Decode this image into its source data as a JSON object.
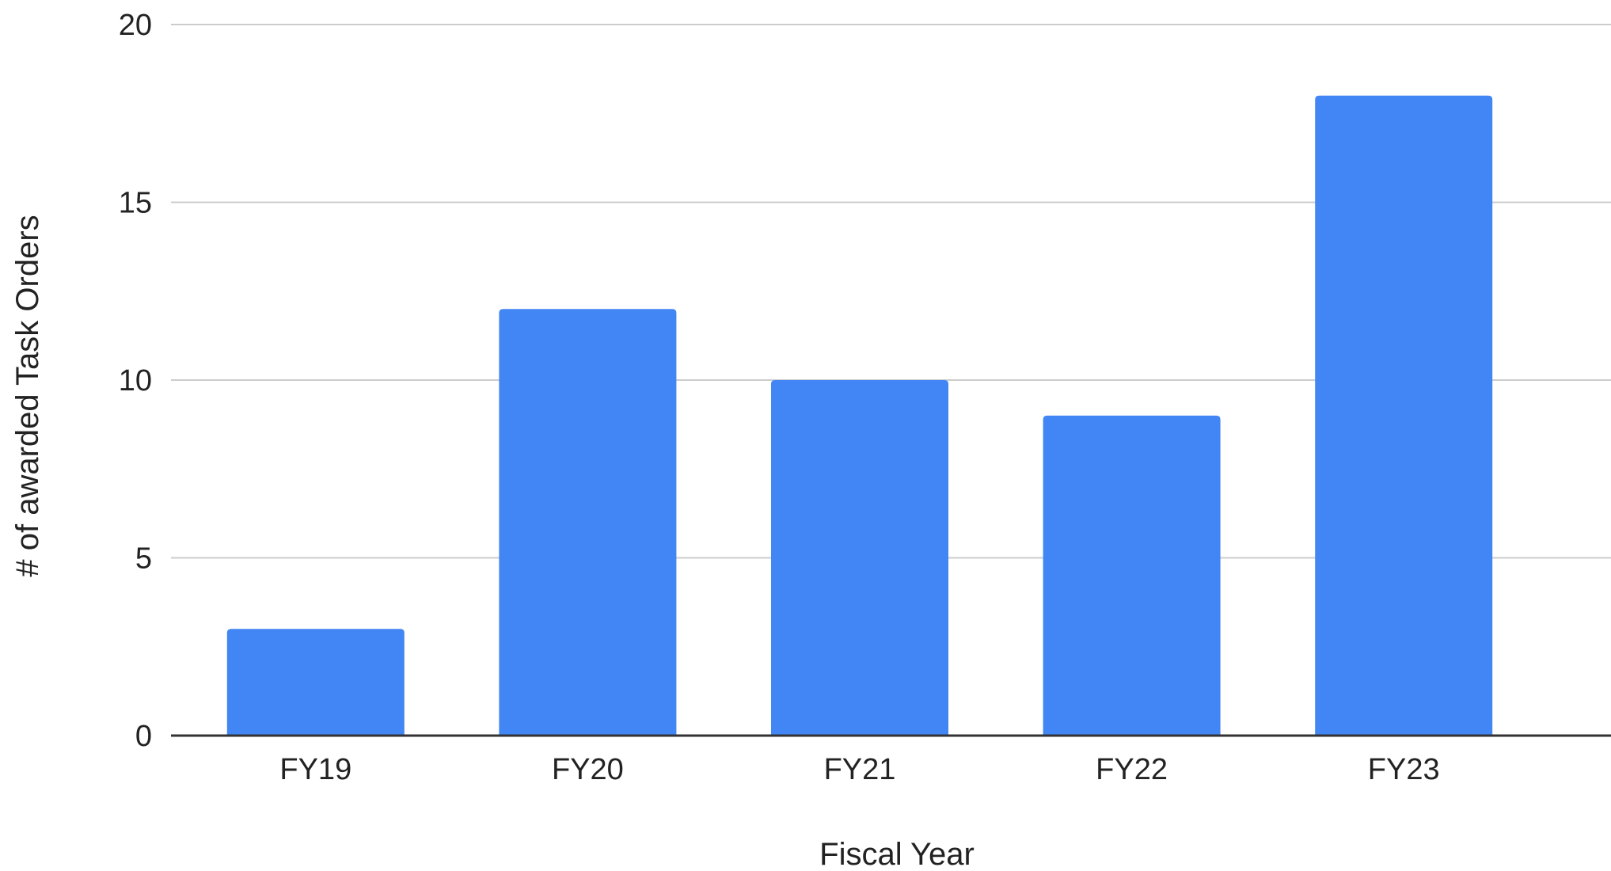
{
  "chart_data": {
    "type": "bar",
    "categories": [
      "FY19",
      "FY20",
      "FY21",
      "FY22",
      "FY23"
    ],
    "values": [
      3,
      12,
      10,
      9,
      18
    ],
    "title": "",
    "xlabel": "Fiscal Year",
    "ylabel": "# of awarded Task Orders",
    "ylim": [
      0,
      20
    ],
    "yticks": [
      "0",
      "5",
      "10",
      "15",
      "20"
    ],
    "grid": true,
    "legend": "none",
    "bar_color": "#4285F4"
  }
}
